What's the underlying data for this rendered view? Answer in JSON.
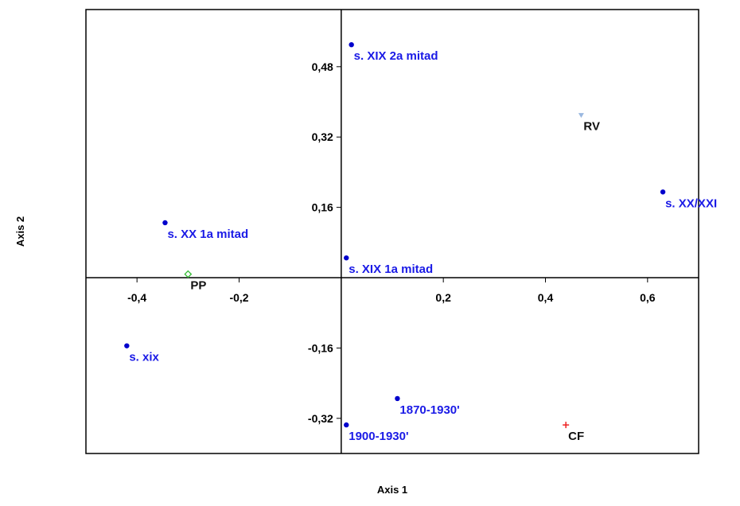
{
  "chart_data": {
    "type": "scatter",
    "title": "",
    "xlabel": "Axis 1",
    "ylabel": "Axis 2",
    "xlim": [
      -0.5,
      0.7
    ],
    "ylim": [
      -0.4,
      0.61
    ],
    "grid": false,
    "x_ticks": [
      {
        "value": -0.4,
        "label": "-0,4"
      },
      {
        "value": -0.2,
        "label": "-0,2"
      },
      {
        "value": 0.2,
        "label": "0,2"
      },
      {
        "value": 0.4,
        "label": "0,4"
      },
      {
        "value": 0.6,
        "label": "0,6"
      }
    ],
    "y_ticks": [
      {
        "value": 0.48,
        "label": "0,48"
      },
      {
        "value": 0.32,
        "label": "0,32"
      },
      {
        "value": 0.16,
        "label": "0,16"
      },
      {
        "value": -0.16,
        "label": "-0,16"
      },
      {
        "value": -0.32,
        "label": "-0,32"
      }
    ],
    "points": [
      {
        "label": "s. XIX 2a mitad",
        "x": 0.02,
        "y": 0.53,
        "marker": "dot",
        "color": "#0000cc",
        "label_color": "#1a1ae6"
      },
      {
        "label": "RV",
        "x": 0.47,
        "y": 0.37,
        "marker": "triangle",
        "color": "#9ab8e0",
        "label_color": "#111111"
      },
      {
        "label": "s. XX/XXI",
        "x": 0.63,
        "y": 0.195,
        "marker": "dot",
        "color": "#0000cc",
        "label_color": "#1a1ae6"
      },
      {
        "label": "s. XX 1a mitad",
        "x": -0.345,
        "y": 0.125,
        "marker": "dot",
        "color": "#0000cc",
        "label_color": "#1a1ae6"
      },
      {
        "label": "s. XIX 1a mitad",
        "x": 0.01,
        "y": 0.045,
        "marker": "dot",
        "color": "#0000cc",
        "label_color": "#1a1ae6"
      },
      {
        "label": "PP",
        "x": -0.3,
        "y": 0.008,
        "marker": "diamond",
        "color": "#33bb33",
        "label_color": "#111111"
      },
      {
        "label": "s. xix",
        "x": -0.42,
        "y": -0.155,
        "marker": "dot",
        "color": "#0000cc",
        "label_color": "#1a1ae6"
      },
      {
        "label": "1870-1930'",
        "x": 0.11,
        "y": -0.275,
        "marker": "dot",
        "color": "#0000cc",
        "label_color": "#1a1ae6"
      },
      {
        "label": "1900-1930'",
        "x": 0.01,
        "y": -0.335,
        "marker": "dot",
        "color": "#0000cc",
        "label_color": "#1a1ae6"
      },
      {
        "label": "CF",
        "x": 0.44,
        "y": -0.335,
        "marker": "plus",
        "color": "#ee2222",
        "label_color": "#111111"
      }
    ]
  }
}
